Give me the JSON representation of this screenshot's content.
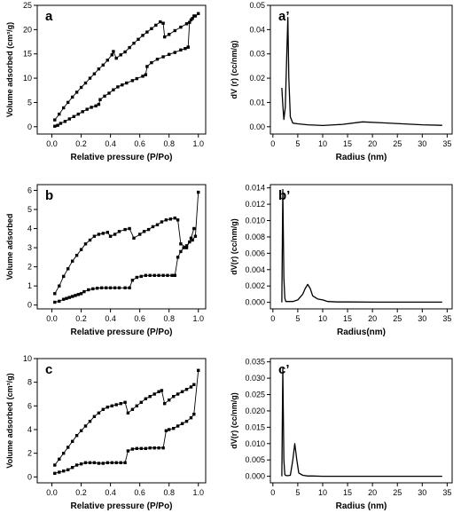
{
  "chart_data": [
    {
      "panel": "a",
      "type": "line",
      "xlabel": "Relative pressure (P/Po)",
      "ylabel": "Volume adsorbed (cm³/g)",
      "xlim": [
        -0.1,
        1.05
      ],
      "ylim": [
        -1.5,
        25
      ],
      "xticks": [
        "0.0",
        "0.2",
        "0.4",
        "0.6",
        "0.8",
        "1.0"
      ],
      "xtick_values": [
        0,
        0.2,
        0.4,
        0.6,
        0.8,
        1.0
      ],
      "yticks": [
        "0",
        "5",
        "10",
        "15",
        "20",
        "25"
      ],
      "ytick_values": [
        0,
        5,
        10,
        15,
        20,
        25
      ],
      "markers": true,
      "series": [
        {
          "x": [
            0.02,
            0.04,
            0.06,
            0.09,
            0.12,
            0.15,
            0.18,
            0.21,
            0.24,
            0.27,
            0.3,
            0.32,
            0.33,
            0.36,
            0.39,
            0.42,
            0.45,
            0.48,
            0.51,
            0.55,
            0.58,
            0.62,
            0.64,
            0.65,
            0.68,
            0.72,
            0.76,
            0.8,
            0.84,
            0.88,
            0.91,
            0.93
          ],
          "y": [
            0.1,
            0.3,
            0.7,
            1.1,
            1.6,
            2.1,
            2.6,
            3.1,
            3.6,
            4.0,
            4.3,
            4.6,
            5.6,
            6.3,
            6.9,
            7.6,
            8.2,
            8.6,
            9.0,
            9.5,
            9.9,
            10.4,
            10.7,
            12.4,
            13.2,
            13.9,
            14.4,
            14.9,
            15.3,
            15.8,
            16.1,
            16.4
          ]
        },
        {
          "x": [
            0.93,
            0.94,
            0.96,
            0.98,
            1.0
          ],
          "y": [
            16.4,
            21.5,
            22.3,
            22.8,
            23.3
          ]
        },
        {
          "x": [
            0.02,
            0.05,
            0.08,
            0.11,
            0.14,
            0.17,
            0.2,
            0.23,
            0.26,
            0.29,
            0.32,
            0.35,
            0.38,
            0.41,
            0.42,
            0.44,
            0.47,
            0.5,
            0.53,
            0.56,
            0.59,
            0.62,
            0.65,
            0.68,
            0.71,
            0.74,
            0.76,
            0.77,
            0.8,
            0.84,
            0.88,
            0.92,
            0.95,
            0.97
          ],
          "y": [
            1.4,
            2.6,
            3.9,
            5.0,
            6.1,
            7.1,
            8.1,
            9.0,
            10.0,
            10.9,
            11.9,
            12.7,
            13.7,
            14.8,
            15.5,
            14.1,
            14.8,
            15.4,
            16.3,
            17.2,
            18.0,
            18.8,
            19.5,
            20.2,
            20.9,
            21.6,
            21.3,
            18.5,
            19.0,
            19.8,
            20.5,
            21.2,
            22.0,
            22.8
          ]
        }
      ]
    },
    {
      "panel": "a’",
      "type": "line",
      "xlabel": "Radius (nm)",
      "ylabel": "dV (r) (cc/nm/g)",
      "xlim": [
        -0.5,
        36
      ],
      "ylim": [
        -0.003,
        0.05
      ],
      "xticks": [
        "0",
        "5",
        "10",
        "15",
        "20",
        "25",
        "30",
        "35"
      ],
      "xtick_values": [
        0,
        5,
        10,
        15,
        20,
        25,
        30,
        35
      ],
      "yticks": [
        "0.00",
        "0.01",
        "0.02",
        "0.03",
        "0.04",
        "0.05"
      ],
      "ytick_values": [
        0,
        0.01,
        0.02,
        0.03,
        0.04,
        0.05
      ],
      "markers": false,
      "series": [
        {
          "x": [
            1.8,
            2.0,
            2.2,
            2.5,
            2.8,
            3.0,
            3.2,
            3.5,
            4.0,
            5,
            7,
            10,
            14,
            18,
            22,
            26,
            30,
            34
          ],
          "y": [
            0.016,
            0.009,
            0.003,
            0.008,
            0.03,
            0.045,
            0.02,
            0.004,
            0.0015,
            0.0012,
            0.0008,
            0.0005,
            0.001,
            0.002,
            0.0016,
            0.0012,
            0.0008,
            0.0006
          ]
        }
      ]
    },
    {
      "panel": "b",
      "type": "line",
      "xlabel": "Relative pressure (P/Po)",
      "ylabel": "Volume adsorbed",
      "xlim": [
        -0.1,
        1.05
      ],
      "ylim": [
        -0.2,
        6.3
      ],
      "xticks": [
        "0.0",
        "0.2",
        "0.4",
        "0.6",
        "0.8",
        "1.0"
      ],
      "xtick_values": [
        0,
        0.2,
        0.4,
        0.6,
        0.8,
        1.0
      ],
      "yticks": [
        "0",
        "1",
        "2",
        "3",
        "4",
        "5",
        "6"
      ],
      "ytick_values": [
        0,
        1,
        2,
        3,
        4,
        5,
        6
      ],
      "markers": true,
      "series": [
        {
          "x": [
            0.02,
            0.05,
            0.08,
            0.1,
            0.12,
            0.14,
            0.16,
            0.18,
            0.2,
            0.22,
            0.25,
            0.28,
            0.31,
            0.34,
            0.37,
            0.4,
            0.43,
            0.46,
            0.5,
            0.53,
            0.55,
            0.58,
            0.61,
            0.64,
            0.67,
            0.7,
            0.73,
            0.76,
            0.79,
            0.82,
            0.84,
            0.86,
            0.88,
            0.9,
            0.92,
            0.94,
            0.96,
            0.98,
            1.0
          ],
          "y": [
            0.15,
            0.2,
            0.3,
            0.35,
            0.4,
            0.45,
            0.5,
            0.55,
            0.6,
            0.7,
            0.8,
            0.85,
            0.88,
            0.9,
            0.9,
            0.9,
            0.9,
            0.9,
            0.9,
            0.9,
            1.3,
            1.45,
            1.5,
            1.55,
            1.55,
            1.55,
            1.55,
            1.55,
            1.55,
            1.55,
            1.55,
            2.5,
            2.8,
            3.0,
            3.1,
            3.3,
            3.4,
            3.6,
            5.9
          ]
        },
        {
          "x": [
            0.02,
            0.05,
            0.08,
            0.11,
            0.14,
            0.17,
            0.2,
            0.23,
            0.26,
            0.29,
            0.32,
            0.35,
            0.38,
            0.4,
            0.43,
            0.46,
            0.5,
            0.53,
            0.56,
            0.6,
            0.63,
            0.66,
            0.69,
            0.72,
            0.75,
            0.78,
            0.81,
            0.84,
            0.86,
            0.88,
            0.92,
            0.95,
            0.97
          ],
          "y": [
            0.6,
            1.0,
            1.5,
            1.9,
            2.3,
            2.6,
            2.9,
            3.2,
            3.4,
            3.6,
            3.7,
            3.75,
            3.8,
            3.6,
            3.7,
            3.85,
            3.95,
            4.0,
            3.5,
            3.7,
            3.85,
            3.95,
            4.1,
            4.2,
            4.35,
            4.45,
            4.5,
            4.55,
            4.45,
            3.2,
            3.0,
            3.5,
            4.0
          ]
        }
      ]
    },
    {
      "panel": "b’",
      "type": "line",
      "xlabel": "Radius(nm)",
      "ylabel": "dV(r) (cc/nm/g)",
      "xlim": [
        -0.5,
        36
      ],
      "ylim": [
        -0.0008,
        0.0144
      ],
      "xticks": [
        "0",
        "5",
        "10",
        "15",
        "20",
        "25",
        "30",
        "35"
      ],
      "xtick_values": [
        0,
        5,
        10,
        15,
        20,
        25,
        30,
        35
      ],
      "yticks": [
        "0.000",
        "0.002",
        "0.004",
        "0.006",
        "0.008",
        "0.010",
        "0.012",
        "0.014"
      ],
      "ytick_values": [
        0,
        0.002,
        0.004,
        0.006,
        0.008,
        0.01,
        0.012,
        0.014
      ],
      "markers": false,
      "series": [
        {
          "x": [
            1.8,
            2.0,
            2.2,
            2.4,
            2.6,
            3,
            4,
            5,
            6,
            6.5,
            7,
            7.5,
            8,
            9,
            10,
            11,
            13,
            15,
            20,
            25,
            30,
            34
          ],
          "y": [
            0.0,
            0.0138,
            0.003,
            0.0005,
            0.0001,
            0.0001,
            0.0001,
            0.0003,
            0.001,
            0.0017,
            0.0022,
            0.0017,
            0.0008,
            0.0004,
            0.0003,
            0.0001,
            5e-05,
            5e-05,
            3e-05,
            2e-05,
            2e-05,
            2e-05
          ]
        }
      ]
    },
    {
      "panel": "c",
      "type": "line",
      "xlabel": "Relative pressure (P/Po)",
      "ylabel": "Volume adsorbed (cm³/g)",
      "xlim": [
        -0.1,
        1.05
      ],
      "ylim": [
        -0.5,
        10
      ],
      "xticks": [
        "0.0",
        "0.2",
        "0.4",
        "0.6",
        "0.8",
        "1.0"
      ],
      "xtick_values": [
        0,
        0.2,
        0.4,
        0.6,
        0.8,
        1.0
      ],
      "yticks": [
        "0",
        "2",
        "4",
        "6",
        "8",
        "10"
      ],
      "ytick_values": [
        0,
        2,
        4,
        6,
        8,
        10
      ],
      "markers": true,
      "series": [
        {
          "x": [
            0.02,
            0.05,
            0.08,
            0.11,
            0.14,
            0.17,
            0.2,
            0.23,
            0.26,
            0.29,
            0.32,
            0.35,
            0.38,
            0.41,
            0.44,
            0.47,
            0.5,
            0.52,
            0.55,
            0.58,
            0.61,
            0.64,
            0.67,
            0.7,
            0.73,
            0.76,
            0.78,
            0.8,
            0.83,
            0.86,
            0.89,
            0.92,
            0.95,
            0.97,
            1.0
          ],
          "y": [
            0.3,
            0.4,
            0.5,
            0.6,
            0.8,
            1.0,
            1.1,
            1.2,
            1.2,
            1.2,
            1.15,
            1.15,
            1.2,
            1.2,
            1.2,
            1.2,
            1.2,
            2.2,
            2.35,
            2.4,
            2.4,
            2.4,
            2.45,
            2.45,
            2.45,
            2.45,
            3.9,
            4.0,
            4.1,
            4.3,
            4.5,
            4.7,
            5.0,
            5.3,
            9.0
          ]
        },
        {
          "x": [
            0.02,
            0.05,
            0.08,
            0.11,
            0.14,
            0.17,
            0.2,
            0.23,
            0.26,
            0.29,
            0.32,
            0.35,
            0.38,
            0.41,
            0.44,
            0.47,
            0.5,
            0.52,
            0.55,
            0.58,
            0.61,
            0.64,
            0.67,
            0.7,
            0.73,
            0.75,
            0.77,
            0.8,
            0.83,
            0.86,
            0.89,
            0.92,
            0.95,
            0.97
          ],
          "y": [
            1.0,
            1.5,
            2.0,
            2.5,
            3.0,
            3.5,
            3.9,
            4.3,
            4.7,
            5.1,
            5.4,
            5.7,
            5.9,
            6.0,
            6.1,
            6.2,
            6.3,
            5.4,
            5.7,
            6.0,
            6.3,
            6.6,
            6.8,
            7.0,
            7.2,
            7.3,
            6.2,
            6.5,
            6.8,
            7.0,
            7.2,
            7.4,
            7.6,
            7.8
          ]
        }
      ]
    },
    {
      "panel": "c’",
      "type": "line",
      "xlabel": "Radius (nm)",
      "ylabel": "dV(r) (cc/nm/g)",
      "xlim": [
        -0.5,
        36
      ],
      "ylim": [
        -0.002,
        0.036
      ],
      "xticks": [
        "0",
        "5",
        "10",
        "15",
        "20",
        "25",
        "30",
        "35"
      ],
      "xtick_values": [
        0,
        5,
        10,
        15,
        20,
        25,
        30,
        35
      ],
      "yticks": [
        "0.000",
        "0.005",
        "0.010",
        "0.015",
        "0.020",
        "0.025",
        "0.030",
        "0.035"
      ],
      "ytick_values": [
        0,
        0.005,
        0.01,
        0.015,
        0.02,
        0.025,
        0.03,
        0.035
      ],
      "markers": false,
      "series": [
        {
          "x": [
            1.8,
            2.0,
            2.2,
            2.4,
            2.7,
            3,
            3.5,
            4,
            4.4,
            4.8,
            5.2,
            6,
            7,
            8,
            10,
            15,
            20,
            25,
            30,
            34
          ],
          "y": [
            0.0,
            0.033,
            0.005,
            0.0005,
            0.0002,
            0.0002,
            0.0003,
            0.005,
            0.01,
            0.005,
            0.001,
            0.0003,
            0.0001,
            0.0001,
            0.0,
            0.0,
            0.0,
            0.0,
            0.0,
            0.0
          ]
        }
      ]
    }
  ]
}
